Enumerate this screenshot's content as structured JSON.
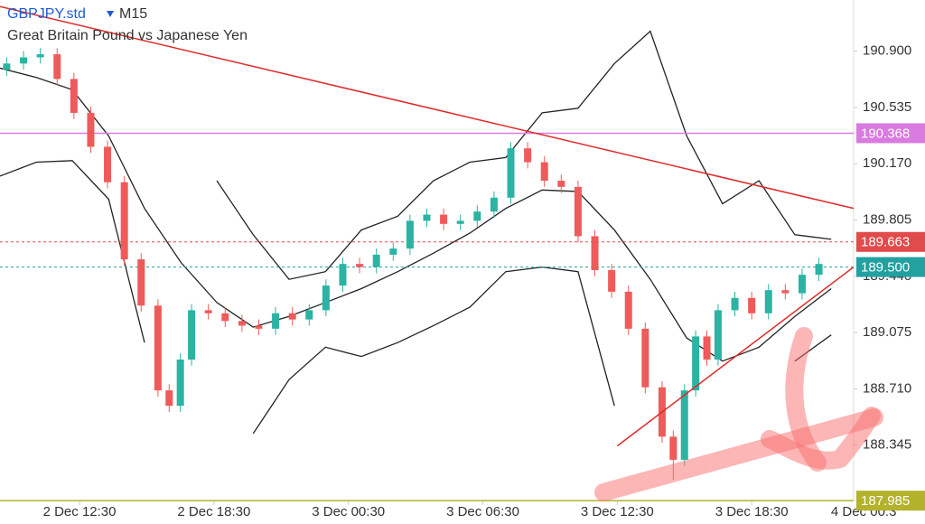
{
  "chart_data": {
    "type": "candlestick",
    "title": "GBPJPY.std",
    "timeframe": "M15",
    "subtitle": "Great Britain Pound vs Japanese Yen",
    "up_color": "#2bb3a3",
    "down_color": "#ef5a5a",
    "xlim": [
      -14.2,
      138.2
    ],
    "xticks": [
      {
        "value": 0,
        "label": "2 Dec 12:30"
      },
      {
        "value": 24,
        "label": "2 Dec 18:30"
      },
      {
        "value": 48,
        "label": "3 Dec 00:30"
      },
      {
        "value": 72,
        "label": "3 Dec 06:30"
      },
      {
        "value": 96,
        "label": "3 Dec 12:30"
      },
      {
        "value": 120,
        "label": "3 Dec 18:30"
      },
      {
        "value": 140,
        "label": "4 Dec 00:3"
      }
    ],
    "ylim": [
      187.98,
      191.232
    ],
    "yticks": [
      {
        "value": 190.9,
        "label": "190.900"
      },
      {
        "value": 190.535,
        "label": "190.535"
      },
      {
        "value": 190.17,
        "label": "190.170"
      },
      {
        "value": 189.805,
        "label": "189.805"
      },
      {
        "value": 189.44,
        "label": "189.440"
      },
      {
        "value": 189.075,
        "label": "189.075"
      },
      {
        "value": 188.71,
        "label": "188.710"
      },
      {
        "value": 188.345,
        "label": "188.345"
      }
    ],
    "x": [
      -13,
      -10,
      -7,
      -4,
      -1,
      2,
      5,
      8,
      11,
      14,
      16,
      18,
      20,
      23,
      26,
      29,
      32,
      35,
      38,
      41,
      44,
      47,
      50,
      53,
      56,
      59,
      62,
      65,
      68,
      71,
      74,
      77,
      80,
      83,
      86,
      89,
      92,
      95,
      98,
      101,
      104,
      106,
      108,
      110,
      112,
      114,
      117,
      120,
      123,
      126,
      129,
      132
    ],
    "open": [
      190.78,
      190.82,
      190.86,
      190.88,
      190.72,
      190.5,
      190.28,
      190.05,
      189.55,
      189.25,
      188.7,
      188.6,
      188.9,
      189.22,
      189.2,
      189.15,
      189.12,
      189.1,
      189.2,
      189.16,
      189.22,
      189.38,
      189.52,
      189.5,
      189.58,
      189.62,
      189.8,
      189.84,
      189.78,
      189.8,
      189.86,
      189.95,
      190.27,
      190.18,
      190.06,
      190.02,
      189.7,
      189.48,
      189.34,
      189.1,
      188.72,
      188.4,
      188.25,
      188.7,
      189.05,
      188.9,
      189.22,
      189.3,
      189.2,
      189.35,
      189.33,
      189.45
    ],
    "high": [
      190.86,
      190.9,
      190.92,
      190.92,
      190.76,
      190.54,
      190.32,
      190.09,
      189.59,
      189.29,
      188.74,
      188.94,
      189.26,
      189.26,
      189.24,
      189.19,
      189.16,
      189.24,
      189.24,
      189.26,
      189.42,
      189.56,
      189.56,
      189.62,
      189.66,
      189.84,
      189.88,
      189.88,
      189.84,
      189.9,
      189.99,
      190.31,
      190.31,
      190.22,
      190.1,
      190.06,
      189.74,
      189.52,
      189.38,
      189.14,
      188.76,
      188.44,
      188.74,
      189.09,
      189.09,
      189.26,
      189.34,
      189.34,
      189.39,
      189.39,
      189.49,
      189.56
    ],
    "low": [
      190.74,
      190.78,
      190.82,
      190.68,
      190.46,
      190.24,
      190.01,
      189.51,
      189.21,
      188.66,
      188.56,
      188.56,
      188.86,
      189.16,
      189.11,
      189.08,
      189.06,
      189.06,
      189.12,
      189.12,
      189.18,
      189.34,
      189.46,
      189.46,
      189.54,
      189.58,
      189.76,
      189.74,
      189.74,
      189.76,
      189.82,
      189.91,
      190.14,
      190.02,
      189.98,
      189.66,
      189.44,
      189.3,
      189.06,
      188.68,
      188.36,
      188.12,
      188.21,
      188.66,
      188.86,
      188.86,
      189.18,
      189.16,
      189.16,
      189.29,
      189.29,
      189.41
    ],
    "close": [
      190.82,
      190.86,
      190.88,
      190.72,
      190.5,
      190.28,
      190.05,
      189.55,
      189.25,
      188.7,
      188.6,
      188.9,
      189.22,
      189.2,
      189.15,
      189.12,
      189.1,
      189.2,
      189.16,
      189.22,
      189.38,
      189.52,
      189.5,
      189.58,
      189.62,
      189.8,
      189.84,
      189.78,
      189.8,
      189.86,
      189.95,
      190.27,
      190.18,
      190.06,
      190.02,
      189.7,
      189.48,
      189.34,
      189.1,
      188.72,
      188.4,
      188.25,
      188.7,
      189.05,
      188.9,
      189.22,
      189.3,
      189.2,
      189.35,
      189.33,
      189.45,
      189.52
    ],
    "lines": [
      {
        "color": "#222222",
        "x": [
          -14.2,
          -7.7,
          -1.3,
          5.2,
          11.6,
          18.1,
          24.5,
          31.0,
          37.4,
          43.9,
          50.3,
          56.8,
          63.2,
          69.7,
          76.1,
          82.6,
          89.0,
          95.5,
          101.9,
          108.4,
          114.8,
          121.3,
          127.7,
          134.2
        ],
        "values": [
          null,
          null,
          null,
          null,
          null,
          null,
          190.06,
          189.71,
          189.42,
          189.47,
          189.74,
          189.83,
          190.06,
          190.18,
          190.21,
          190.5,
          190.53,
          190.82,
          191.03,
          190.35,
          189.91,
          190.06,
          189.71,
          189.68
        ]
      },
      {
        "color": "#222222",
        "x": [
          -14.2,
          -7.7,
          -1.3,
          5.2,
          11.6,
          18.1,
          24.5,
          31.0,
          37.4,
          43.9,
          50.3,
          56.8,
          63.2,
          69.7,
          76.1,
          82.6,
          89.0,
          95.5,
          101.9,
          108.4,
          114.8,
          121.3,
          127.7,
          134.2
        ],
        "values": [
          190.79,
          190.73,
          190.65,
          190.35,
          189.88,
          189.53,
          189.27,
          189.11,
          189.18,
          189.27,
          189.36,
          189.47,
          189.59,
          189.72,
          189.88,
          190.0,
          189.99,
          189.74,
          189.42,
          189.04,
          188.89,
          188.98,
          189.18,
          189.36
        ]
      },
      {
        "color": "#222222",
        "x": [
          -14.2,
          -7.7,
          -1.3,
          5.2,
          11.6,
          18.1,
          24.5,
          31.0,
          37.4,
          43.9,
          50.3,
          56.8,
          63.2,
          69.7,
          76.1,
          82.6,
          89.0,
          95.5,
          101.9,
          108.4,
          114.8,
          121.3,
          127.7,
          134.2
        ],
        "values": [
          190.09,
          190.18,
          190.19,
          189.94,
          189.01,
          null,
          null,
          188.42,
          188.77,
          188.98,
          188.92,
          189.01,
          189.12,
          189.24,
          189.47,
          189.5,
          189.47,
          188.6,
          null,
          null,
          null,
          null,
          188.89,
          189.06
        ]
      }
    ],
    "trendlines": [
      {
        "color": "#e02a2a",
        "x": [
          -14.2,
          138.2
        ],
        "values": [
          191.19,
          189.88
        ]
      },
      {
        "color": "#e02a2a",
        "x": [
          96.0,
          138.2
        ],
        "values": [
          188.34,
          189.5
        ]
      }
    ],
    "price_lines": [
      {
        "value": 190.368,
        "label": "190.368",
        "color": "#d97be0",
        "dashed": false
      },
      {
        "value": 189.663,
        "label": "189.663",
        "color": "#e04b4b",
        "dashed": true
      },
      {
        "value": 189.5,
        "label": "189.500",
        "color": "#23a0a0",
        "dashed": true
      },
      {
        "value": 187.985,
        "label": "187.985",
        "color": "#b3b22c",
        "dashed": false
      }
    ]
  }
}
